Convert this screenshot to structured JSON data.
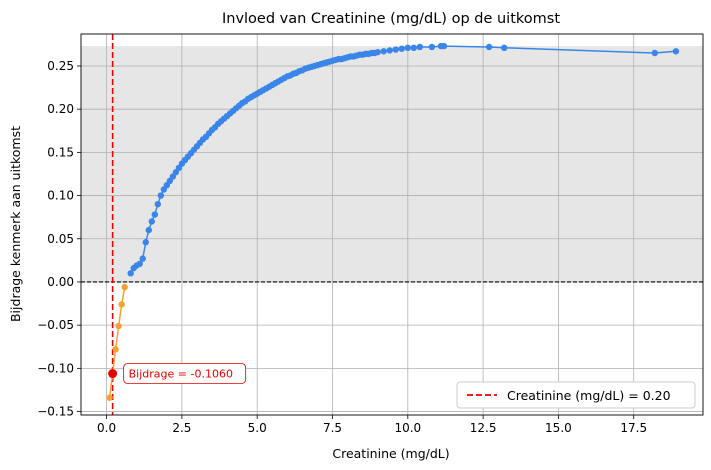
{
  "chart_data": {
    "type": "line",
    "title": "Invloed van Creatinine (mg/dL) op de uitkomst",
    "xlabel": "Creatinine (mg/dL)",
    "ylabel": "Bijdrage kenmerk aan uitkomst",
    "xlim": [
      -0.85,
      19.8
    ],
    "ylim": [
      -0.154,
      0.287
    ],
    "xticks": [
      0.0,
      2.5,
      5.0,
      7.5,
      10.0,
      12.5,
      15.0,
      17.5
    ],
    "xtick_labels": [
      "0.0",
      "2.5",
      "5.0",
      "7.5",
      "10.0",
      "12.5",
      "15.0",
      "17.5"
    ],
    "yticks": [
      -0.15,
      -0.1,
      -0.05,
      0.0,
      0.05,
      0.1,
      0.15,
      0.2,
      0.25
    ],
    "ytick_labels": [
      "−0.15",
      "−0.10",
      "−0.05",
      "0.00",
      "0.05",
      "0.10",
      "0.15",
      "0.20",
      "0.25"
    ],
    "grid": true,
    "shaded_region": {
      "y_from": 0.0,
      "y_to": 0.273,
      "color": "#e6e6e6"
    },
    "zero_line": {
      "y": 0.0,
      "color": "#000000",
      "style": "dashed"
    },
    "colors": {
      "positive": "#3a86e8",
      "negative": "#f5a033",
      "marker": "#e60000"
    },
    "series_negative": {
      "x": [
        0.1,
        0.3,
        0.4,
        0.5,
        0.6
      ],
      "y": [
        -0.134,
        -0.078,
        -0.051,
        -0.026,
        -0.006
      ]
    },
    "series_positive": {
      "x": [
        0.8,
        0.9,
        1.0,
        1.1,
        1.2,
        1.3,
        1.4,
        1.5,
        1.6,
        1.7,
        1.8,
        1.9,
        2.0,
        2.1,
        2.2,
        2.3,
        2.4,
        2.5,
        2.6,
        2.7,
        2.8,
        2.9,
        3.0,
        3.1,
        3.2,
        3.3,
        3.4,
        3.5,
        3.6,
        3.7,
        3.8,
        3.9,
        4.0,
        4.1,
        4.2,
        4.3,
        4.4,
        4.5,
        4.6,
        4.7,
        4.8,
        4.9,
        5.0,
        5.1,
        5.2,
        5.3,
        5.4,
        5.5,
        5.6,
        5.7,
        5.8,
        5.9,
        6.0,
        6.1,
        6.2,
        6.3,
        6.4,
        6.5,
        6.6,
        6.7,
        6.8,
        6.9,
        7.0,
        7.1,
        7.2,
        7.3,
        7.4,
        7.5,
        7.6,
        7.7,
        7.8,
        7.9,
        8.0,
        8.1,
        8.2,
        8.3,
        8.4,
        8.5,
        8.6,
        8.7,
        8.8,
        8.9,
        9.0,
        9.2,
        9.4,
        9.6,
        9.8,
        10.0,
        10.2,
        10.4,
        10.8,
        11.1,
        11.2,
        12.7,
        13.2,
        18.2,
        18.9
      ],
      "y": [
        0.01,
        0.016,
        0.019,
        0.021,
        0.027,
        0.046,
        0.06,
        0.07,
        0.078,
        0.09,
        0.1,
        0.107,
        0.112,
        0.117,
        0.122,
        0.127,
        0.132,
        0.137,
        0.141,
        0.145,
        0.149,
        0.153,
        0.157,
        0.161,
        0.165,
        0.168,
        0.172,
        0.176,
        0.179,
        0.183,
        0.186,
        0.189,
        0.192,
        0.195,
        0.198,
        0.201,
        0.204,
        0.207,
        0.209,
        0.212,
        0.214,
        0.216,
        0.218,
        0.22,
        0.222,
        0.224,
        0.226,
        0.228,
        0.23,
        0.232,
        0.234,
        0.236,
        0.238,
        0.239,
        0.241,
        0.242,
        0.244,
        0.245,
        0.247,
        0.248,
        0.249,
        0.25,
        0.251,
        0.252,
        0.253,
        0.254,
        0.255,
        0.256,
        0.257,
        0.258,
        0.258,
        0.259,
        0.26,
        0.261,
        0.261,
        0.262,
        0.263,
        0.263,
        0.264,
        0.264,
        0.265,
        0.265,
        0.266,
        0.267,
        0.268,
        0.269,
        0.27,
        0.271,
        0.271,
        0.272,
        0.272,
        0.273,
        0.273,
        0.272,
        0.271,
        0.265,
        0.267
      ]
    },
    "vline": {
      "x": 0.2,
      "color": "#e60000",
      "style": "dashed"
    },
    "highlight_point": {
      "x": 0.2,
      "y": -0.106
    },
    "annotation": "Bijdrage = -0.1060",
    "legend": {
      "label": "Creatinine (mg/dL) = 0.20",
      "position": "bottom-right"
    }
  }
}
